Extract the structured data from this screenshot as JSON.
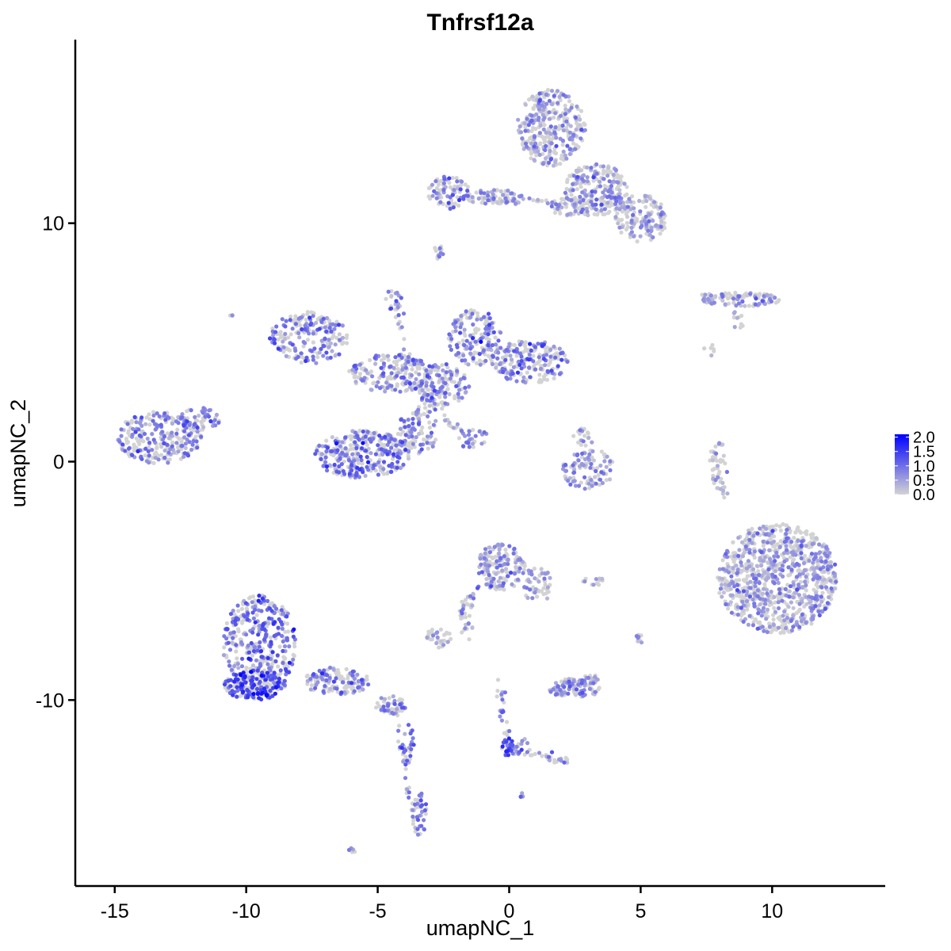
{
  "chart_data": {
    "type": "scatter",
    "title": "Tnfrsf12a",
    "xlabel": "umapNC_1",
    "ylabel": "umapNC_2",
    "xlim": [
      -16.5,
      14.3
    ],
    "ylim": [
      -17.8,
      17.7
    ],
    "x_ticks": [
      {
        "value": -15,
        "label": "-15"
      },
      {
        "value": -10,
        "label": "-10"
      },
      {
        "value": -5,
        "label": "-5"
      },
      {
        "value": 0,
        "label": "0"
      },
      {
        "value": 5,
        "label": "5"
      },
      {
        "value": 10,
        "label": "10"
      }
    ],
    "y_ticks": [
      {
        "value": -10,
        "label": "-10"
      },
      {
        "value": 0,
        "label": "0"
      },
      {
        "value": 10,
        "label": "10"
      }
    ],
    "grid": false,
    "color_scale": {
      "low_color": "#d3d3d3",
      "high_color": "#0000ff",
      "min": 0,
      "max": 2.1,
      "ticks": [
        {
          "value": 0.0,
          "label": "0.0"
        },
        {
          "value": 0.5,
          "label": "0.5"
        },
        {
          "value": 1.0,
          "label": "1.0"
        },
        {
          "value": 1.5,
          "label": "1.5"
        },
        {
          "value": 2.0,
          "label": "2.0"
        }
      ]
    },
    "clusters": [
      {
        "cx": 1.6,
        "cy": 14.0,
        "rx": 1.3,
        "ry": 1.6,
        "n": 320,
        "mean": 0.35
      },
      {
        "cx": 3.3,
        "cy": 11.4,
        "rx": 1.2,
        "ry": 1.1,
        "n": 240,
        "mean": 0.35
      },
      {
        "cx": 5.0,
        "cy": 10.2,
        "rx": 1.0,
        "ry": 1.0,
        "n": 150,
        "mean": 0.3
      },
      {
        "cx": -2.3,
        "cy": 11.3,
        "rx": 0.8,
        "ry": 0.7,
        "n": 80,
        "mean": 0.55
      },
      {
        "cx": -0.5,
        "cy": 11.1,
        "rx": 1.2,
        "ry": 0.3,
        "n": 60,
        "mean": 0.4
      },
      {
        "cx": 2.3,
        "cy": 10.7,
        "rx": 0.8,
        "ry": 0.4,
        "n": 50,
        "mean": 0.25
      },
      {
        "cx": -2.7,
        "cy": 8.8,
        "rx": 0.2,
        "ry": 0.3,
        "n": 12,
        "mean": 0.6
      },
      {
        "cx": 8.8,
        "cy": 6.8,
        "rx": 1.5,
        "ry": 0.3,
        "n": 90,
        "mean": 0.35
      },
      {
        "cx": 8.7,
        "cy": 6.0,
        "rx": 0.3,
        "ry": 0.4,
        "n": 10,
        "mean": 0.15
      },
      {
        "cx": 7.6,
        "cy": 4.7,
        "rx": 0.2,
        "ry": 0.3,
        "n": 6,
        "mean": 0.1
      },
      {
        "cx": -7.6,
        "cy": 5.2,
        "rx": 1.5,
        "ry": 1.1,
        "n": 200,
        "mean": 0.7
      },
      {
        "cx": -4.5,
        "cy": 3.7,
        "rx": 1.6,
        "ry": 0.8,
        "n": 180,
        "mean": 0.6
      },
      {
        "cx": -1.3,
        "cy": 5.2,
        "rx": 1.0,
        "ry": 1.2,
        "n": 160,
        "mean": 0.65
      },
      {
        "cx": 0.8,
        "cy": 4.2,
        "rx": 1.5,
        "ry": 0.9,
        "n": 210,
        "mean": 0.65
      },
      {
        "cx": -2.5,
        "cy": 3.2,
        "rx": 1.0,
        "ry": 0.9,
        "n": 120,
        "mean": 0.45
      },
      {
        "cx": -4.4,
        "cy": 6.8,
        "rx": 0.3,
        "ry": 0.5,
        "n": 20,
        "mean": 0.5
      },
      {
        "cx": -3.5,
        "cy": 1.3,
        "rx": 0.8,
        "ry": 1.0,
        "n": 80,
        "mean": 0.5
      },
      {
        "cx": -5.6,
        "cy": 0.3,
        "rx": 1.8,
        "ry": 1.0,
        "n": 320,
        "mean": 0.75
      },
      {
        "cx": -1.5,
        "cy": 1.0,
        "rx": 0.7,
        "ry": 0.4,
        "n": 20,
        "mean": 0.55
      },
      {
        "cx": -13.3,
        "cy": 1.0,
        "rx": 1.6,
        "ry": 1.1,
        "n": 260,
        "mean": 0.6
      },
      {
        "cx": -11.8,
        "cy": 1.8,
        "rx": 0.8,
        "ry": 0.5,
        "n": 50,
        "mean": 0.6
      },
      {
        "cx": 3.0,
        "cy": -0.3,
        "rx": 1.0,
        "ry": 0.9,
        "n": 100,
        "mean": 0.45
      },
      {
        "cx": 2.8,
        "cy": 1.0,
        "rx": 0.4,
        "ry": 0.4,
        "n": 20,
        "mean": 0.4
      },
      {
        "cx": 8.0,
        "cy": -0.2,
        "rx": 0.3,
        "ry": 1.0,
        "n": 30,
        "mean": 0.1
      },
      {
        "cx": 10.2,
        "cy": -4.9,
        "rx": 2.3,
        "ry": 2.3,
        "n": 900,
        "mean": 0.35
      },
      {
        "cx": -9.5,
        "cy": -7.7,
        "rx": 1.4,
        "ry": 2.1,
        "n": 380,
        "mean": 0.8
      },
      {
        "cx": -9.7,
        "cy": -9.4,
        "rx": 1.2,
        "ry": 0.6,
        "n": 180,
        "mean": 1.2
      },
      {
        "cx": -6.5,
        "cy": -9.2,
        "rx": 1.3,
        "ry": 0.6,
        "n": 130,
        "mean": 0.7
      },
      {
        "cx": -4.5,
        "cy": -10.2,
        "rx": 0.6,
        "ry": 0.4,
        "n": 50,
        "mean": 0.65
      },
      {
        "cx": -3.9,
        "cy": -11.8,
        "rx": 0.3,
        "ry": 0.9,
        "n": 25,
        "mean": 0.7
      },
      {
        "cx": -3.4,
        "cy": -14.8,
        "rx": 0.3,
        "ry": 0.9,
        "n": 40,
        "mean": 0.75
      },
      {
        "cx": -0.3,
        "cy": -4.4,
        "rx": 0.9,
        "ry": 1.0,
        "n": 160,
        "mean": 0.35
      },
      {
        "cx": 1.1,
        "cy": -5.2,
        "rx": 0.6,
        "ry": 0.8,
        "n": 50,
        "mean": 0.35
      },
      {
        "cx": -1.6,
        "cy": -6.5,
        "rx": 0.3,
        "ry": 1.0,
        "n": 25,
        "mean": 0.3
      },
      {
        "cx": -2.7,
        "cy": -7.4,
        "rx": 0.5,
        "ry": 0.4,
        "n": 30,
        "mean": 0.4
      },
      {
        "cx": 2.5,
        "cy": -9.5,
        "rx": 1.0,
        "ry": 0.4,
        "n": 90,
        "mean": 0.45
      },
      {
        "cx": 3.1,
        "cy": -9.1,
        "rx": 0.3,
        "ry": 0.2,
        "n": 15,
        "mean": 0.4
      },
      {
        "cx": 3.2,
        "cy": -5.0,
        "rx": 0.4,
        "ry": 0.2,
        "n": 12,
        "mean": 0.3
      },
      {
        "cx": 0.0,
        "cy": -12.0,
        "rx": 0.3,
        "ry": 0.4,
        "n": 30,
        "mean": 1.1
      },
      {
        "cx": 0.5,
        "cy": -14.0,
        "rx": 0.1,
        "ry": 0.1,
        "n": 5,
        "mean": 0.4
      },
      {
        "cx": 5.0,
        "cy": -7.4,
        "rx": 0.2,
        "ry": 0.2,
        "n": 8,
        "mean": 0.2
      },
      {
        "cx": -6.0,
        "cy": -16.3,
        "rx": 0.2,
        "ry": 0.1,
        "n": 6,
        "mean": 0.6
      },
      {
        "cx": -10.6,
        "cy": 6.1,
        "rx": 0.1,
        "ry": 0.1,
        "n": 3,
        "mean": 0.1
      }
    ],
    "trails": [
      {
        "from": [
          -3.5,
          3.0
        ],
        "to": [
          -1.3,
          0.7
        ],
        "n": 40,
        "mean": 0.4
      },
      {
        "from": [
          -4.3,
          6.5
        ],
        "to": [
          -3.8,
          3.5
        ],
        "n": 25,
        "mean": 0.5
      },
      {
        "from": [
          -2.8,
          3.0
        ],
        "to": [
          -4.0,
          1.0
        ],
        "n": 20,
        "mean": 0.4
      },
      {
        "from": [
          -1.5,
          11.0
        ],
        "to": [
          1.5,
          10.9
        ],
        "n": 30,
        "mean": 0.4
      },
      {
        "from": [
          -0.4,
          -9.3
        ],
        "to": [
          0.0,
          -12.0
        ],
        "n": 25,
        "mean": 0.45
      },
      {
        "from": [
          0.0,
          -12.0
        ],
        "to": [
          2.3,
          -12.6
        ],
        "n": 35,
        "mean": 0.45
      },
      {
        "from": [
          0.0,
          -12.0
        ],
        "to": [
          0.7,
          -11.7
        ],
        "n": 10,
        "mean": 0.4
      },
      {
        "from": [
          -4.3,
          -10.5
        ],
        "to": [
          -3.6,
          -15.2
        ],
        "n": 30,
        "mean": 0.55
      },
      {
        "from": [
          -1.9,
          -6.5
        ],
        "to": [
          -0.9,
          -4.8
        ],
        "n": 20,
        "mean": 0.3
      },
      {
        "from": [
          7.7,
          0.5
        ],
        "to": [
          8.2,
          -1.6
        ],
        "n": 20,
        "mean": 0.1
      },
      {
        "from": [
          2.3,
          -9.4
        ],
        "to": [
          3.5,
          -9.0
        ],
        "n": 10,
        "mean": 0.35
      },
      {
        "from": [
          7.3,
          6.9
        ],
        "to": [
          10.0,
          7.0
        ],
        "n": 30,
        "mean": 0.35
      }
    ]
  }
}
